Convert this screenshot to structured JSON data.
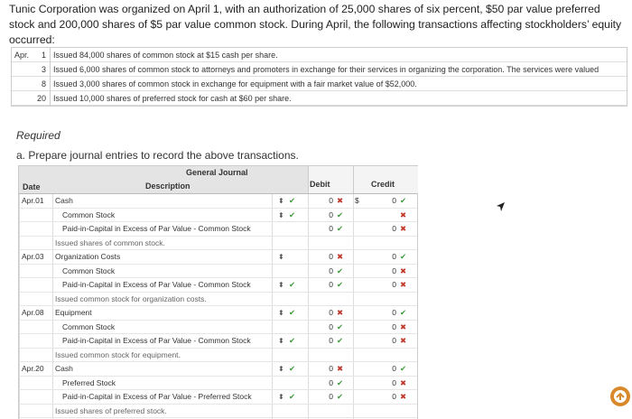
{
  "intro": "Tunic Corporation was organized on April 1, with an authorization of 25,000 shares of six percent, $50 par value preferred stock and 200,000 shares of $5 par value common stock. During April, the following transactions affecting stockholders’ equity occurred:",
  "transactions": {
    "month": "Apr.",
    "items": [
      {
        "day": "1",
        "text": "Issued 84,000 shares of common stock at $15 cash per share."
      },
      {
        "day": "3",
        "text": "Issued 6,000 shares of common stock to attorneys and promoters in exchange for their services in organizing the corporation. The services were valued"
      },
      {
        "day": "8",
        "text": "Issued 3,000 shares of common stock in exchange for equipment with a fair market value of $52,000."
      },
      {
        "day": "20",
        "text": "Issued 10,000 shares of preferred stock for cash at $60 per share."
      }
    ]
  },
  "required": "Required",
  "task": "a. Prepare journal entries to record the above transactions.",
  "journal": {
    "title": "General Journal",
    "headers": {
      "date": "Date",
      "description": "Description",
      "debit": "Debit",
      "credit": "Credit"
    },
    "entries": [
      {
        "date": "Apr.01",
        "memo": "Issued shares of common stock.",
        "lines": [
          {
            "account": "Cash",
            "indent": false,
            "dropdown": true,
            "select_mark": "✔",
            "debit": 0,
            "debit_mark": "✖",
            "credit_prefix": "$",
            "credit": 0,
            "credit_mark": "✔"
          },
          {
            "account": "Common Stock",
            "indent": true,
            "dropdown": true,
            "select_mark": "✔",
            "debit": 0,
            "debit_mark": "✔",
            "credit_mark": "✖"
          },
          {
            "account": "Paid-in-Capital in Excess of Par Value - Common Stock",
            "indent": true,
            "dropdown": false,
            "debit": 0,
            "debit_mark": "✔",
            "credit": 0,
            "credit_mark": "✖"
          }
        ]
      },
      {
        "date": "Apr.03",
        "memo": "Issued common stock for organization costs.",
        "lines": [
          {
            "account": "Organization Costs",
            "indent": false,
            "dropdown": true,
            "debit": 0,
            "debit_mark": "✖",
            "credit": 0,
            "credit_mark": "✔"
          },
          {
            "account": "Common Stock",
            "indent": true,
            "dropdown": false,
            "debit": 0,
            "debit_mark": "✔",
            "credit": 0,
            "credit_mark": "✖"
          },
          {
            "account": "Paid-in-Capital in Excess of Par Value - Common Stock",
            "indent": true,
            "dropdown": true,
            "select_mark": "✔",
            "debit": 0,
            "debit_mark": "✔",
            "credit": 0,
            "credit_mark": "✖"
          }
        ]
      },
      {
        "date": "Apr.08",
        "memo": "Issued common stock for equipment.",
        "lines": [
          {
            "account": "Equipment",
            "indent": false,
            "dropdown": true,
            "select_mark": "✔",
            "debit": 0,
            "debit_mark": "✖",
            "credit": 0,
            "credit_mark": "✔"
          },
          {
            "account": "Common Stock",
            "indent": true,
            "dropdown": false,
            "debit": 0,
            "debit_mark": "✔",
            "credit": 0,
            "credit_mark": "✖"
          },
          {
            "account": "Paid-in-Capital in Excess of Par Value - Common Stock",
            "indent": true,
            "dropdown": true,
            "select_mark": "✔",
            "debit": 0,
            "debit_mark": "✔",
            "credit": 0,
            "credit_mark": "✖"
          }
        ]
      },
      {
        "date": "Apr.20",
        "memo": "Issued shares of preferred stock.",
        "lines": [
          {
            "account": "Cash",
            "indent": false,
            "dropdown": true,
            "select_mark": "✔",
            "debit": 0,
            "debit_mark": "✖",
            "credit": 0,
            "credit_mark": "✔"
          },
          {
            "account": "Preferred Stock",
            "indent": true,
            "dropdown": false,
            "debit": 0,
            "debit_mark": "✔",
            "credit": 0,
            "credit_mark": "✖"
          },
          {
            "account": "Paid-in-Capital in Excess of Par Value - Preferred Stock",
            "indent": true,
            "dropdown": true,
            "select_mark": "✔",
            "debit": 0,
            "debit_mark": "✔",
            "credit": 0,
            "credit_mark": "✖"
          }
        ]
      }
    ]
  }
}
